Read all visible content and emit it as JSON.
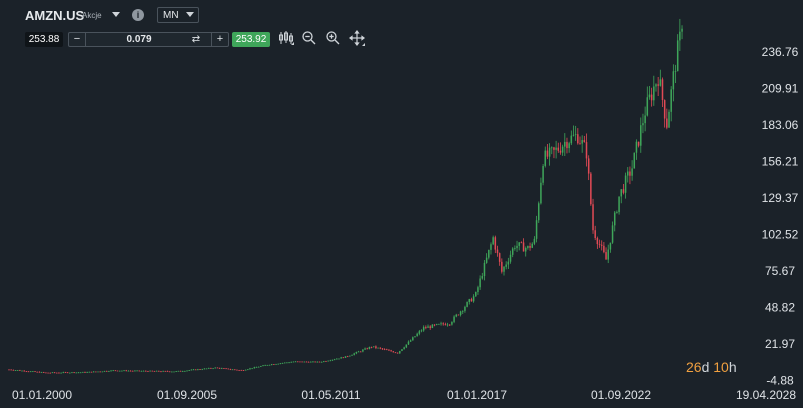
{
  "header": {
    "symbol": "AMZN.US",
    "instrument_type": "Akcje",
    "interval": "MN",
    "bid_price": "253.88",
    "quantity": "0.079",
    "ask_price": "253.92"
  },
  "icons": {
    "symbol_dropdown": "chevron-down-icon",
    "info": "info-icon",
    "interval_dropdown": "chevron-down-icon",
    "swap": "swap-icon",
    "candles_tool": "candlestick-icon",
    "zoom_out": "zoom-out-icon",
    "zoom_in": "zoom-in-icon",
    "crosshair": "move-icon"
  },
  "countdown": {
    "days": "26",
    "days_unit": "d",
    "hours": "10",
    "hours_unit": "h"
  },
  "colors": {
    "background": "#1b2229",
    "up": "#3fa65a",
    "down": "#e04a55",
    "ask": "#3fa65a",
    "axis_text": "#dfe3e7",
    "countdown_accent": "#f0a040"
  },
  "chart_data": {
    "type": "candlestick",
    "interval": "monthly",
    "x_tick_labels": [
      "01.01.2000",
      "01.09.2005",
      "01.05.2011",
      "01.01.2017",
      "01.09.2022",
      "19.04.2028"
    ],
    "y_tick_labels": [
      "236.76",
      "209.91",
      "183.06",
      "156.21",
      "129.37",
      "102.52",
      "75.67",
      "48.82",
      "21.97",
      "-4.88"
    ],
    "y_ticks": [
      236.76,
      209.91,
      183.06,
      156.21,
      129.37,
      102.52,
      75.67,
      48.82,
      21.97,
      -4.88
    ],
    "ylim": [
      -4.88,
      254
    ],
    "x_range": [
      "2000-01",
      "2028-04"
    ],
    "grid": false,
    "last_price": 253.88,
    "approx_monthly_close": [
      {
        "x": "2000-01",
        "y": 3.2
      },
      {
        "x": "2001-06",
        "y": 0.8
      },
      {
        "x": "2003-01",
        "y": 1.2
      },
      {
        "x": "2004-01",
        "y": 2.5
      },
      {
        "x": "2005-06",
        "y": 2.0
      },
      {
        "x": "2006-06",
        "y": 1.8
      },
      {
        "x": "2007-12",
        "y": 4.5
      },
      {
        "x": "2008-12",
        "y": 2.6
      },
      {
        "x": "2009-12",
        "y": 6.7
      },
      {
        "x": "2010-12",
        "y": 9.0
      },
      {
        "x": "2011-12",
        "y": 8.7
      },
      {
        "x": "2012-12",
        "y": 12.5
      },
      {
        "x": "2013-12",
        "y": 20.0
      },
      {
        "x": "2014-12",
        "y": 15.5
      },
      {
        "x": "2015-12",
        "y": 33.8
      },
      {
        "x": "2016-12",
        "y": 37.5
      },
      {
        "x": "2017-12",
        "y": 58.5
      },
      {
        "x": "2018-08",
        "y": 100.0
      },
      {
        "x": "2018-12",
        "y": 75.1
      },
      {
        "x": "2019-06",
        "y": 94.7
      },
      {
        "x": "2019-12",
        "y": 92.4
      },
      {
        "x": "2020-03",
        "y": 97.5
      },
      {
        "x": "2020-07",
        "y": 158.2
      },
      {
        "x": "2020-12",
        "y": 162.8
      },
      {
        "x": "2021-06",
        "y": 172.0
      },
      {
        "x": "2021-11",
        "y": 175.4
      },
      {
        "x": "2022-03",
        "y": 163.0
      },
      {
        "x": "2022-06",
        "y": 106.2
      },
      {
        "x": "2022-12",
        "y": 84.0
      },
      {
        "x": "2023-06",
        "y": 130.4
      },
      {
        "x": "2023-12",
        "y": 151.9
      },
      {
        "x": "2024-06",
        "y": 193.3
      },
      {
        "x": "2024-12",
        "y": 219.4
      },
      {
        "x": "2025-04",
        "y": 184.4
      },
      {
        "x": "2025-08",
        "y": 229.0
      },
      {
        "x": "2025-11",
        "y": 253.9
      }
    ]
  }
}
